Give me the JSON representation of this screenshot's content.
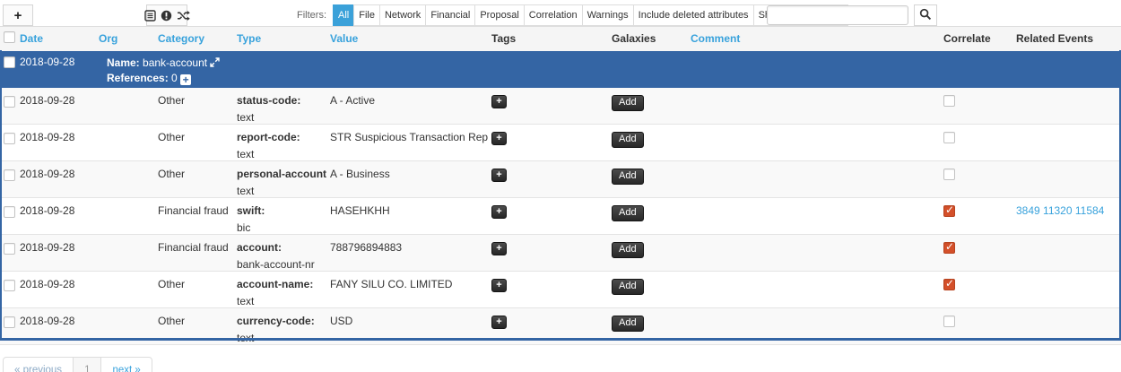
{
  "colors": {
    "object_row_blue": "#3465a4",
    "link_blue": "#38a2dc",
    "active_filter_blue": "#3ba1d9",
    "correlate_checked": "#d4502a"
  },
  "toolbar": {
    "add_button_label": "+",
    "icons": [
      "list-alt-icon",
      "exclamation-circle-icon",
      "shuffle-icon"
    ],
    "filters_label": "Filters:",
    "filter_tabs": [
      "All",
      "File",
      "Network",
      "Financial",
      "Proposal",
      "Correlation",
      "Warnings",
      "Include deleted attributes",
      "Show context fields"
    ],
    "active_filter": "All",
    "search": {
      "value": "",
      "placeholder": ""
    }
  },
  "table": {
    "headers": [
      {
        "label": "Date",
        "sortable": true
      },
      {
        "label": "Org",
        "sortable": true
      },
      {
        "label": "Category",
        "sortable": true
      },
      {
        "label": "Type",
        "sortable": true
      },
      {
        "label": "Value",
        "sortable": true
      },
      {
        "label": "Tags",
        "sortable": false
      },
      {
        "label": "Galaxies",
        "sortable": false
      },
      {
        "label": "Comment",
        "sortable": true
      },
      {
        "label": "Correlate",
        "sortable": false
      },
      {
        "label": "Related Events",
        "sortable": false
      }
    ],
    "object_row": {
      "date": "2018-09-28",
      "name_label": "Name:",
      "name": "bank-account",
      "references_label": "References:",
      "references_count": "0"
    },
    "tag_add_label": "+",
    "galaxy_add_label": "Add",
    "rows": [
      {
        "date": "2018-09-28",
        "org": "",
        "category": "Other",
        "type": "status-code:",
        "subtype": "text",
        "value": "A - Active",
        "comment": "",
        "correlate_checked": false,
        "related_events": []
      },
      {
        "date": "2018-09-28",
        "org": "",
        "category": "Other",
        "type": "report-code:",
        "subtype": "text",
        "value": "STR Suspicious Transaction Report",
        "comment": "",
        "correlate_checked": false,
        "related_events": []
      },
      {
        "date": "2018-09-28",
        "org": "",
        "category": "Other",
        "type": "personal-account-type:",
        "subtype": "text",
        "value": "A - Business",
        "comment": "",
        "correlate_checked": false,
        "related_events": []
      },
      {
        "date": "2018-09-28",
        "org": "",
        "category": "Financial fraud",
        "type": "swift:",
        "subtype": "bic",
        "value": "HASEHKHH",
        "comment": "",
        "correlate_checked": true,
        "related_events": [
          "3849",
          "11320",
          "11584"
        ]
      },
      {
        "date": "2018-09-28",
        "org": "",
        "category": "Financial fraud",
        "type": "account:",
        "subtype": "bank-account-nr",
        "value": "788796894883",
        "comment": "",
        "correlate_checked": true,
        "related_events": []
      },
      {
        "date": "2018-09-28",
        "org": "",
        "category": "Other",
        "type": "account-name:",
        "subtype": "text",
        "value": "FANY SILU CO. LIMITED",
        "comment": "",
        "correlate_checked": true,
        "related_events": []
      },
      {
        "date": "2018-09-28",
        "org": "",
        "category": "Other",
        "type": "currency-code:",
        "subtype": "text",
        "value": "USD",
        "comment": "",
        "correlate_checked": false,
        "related_events": []
      }
    ]
  },
  "pagination": {
    "previous_label": "« previous",
    "current_page": "1",
    "next_label": "next »"
  }
}
